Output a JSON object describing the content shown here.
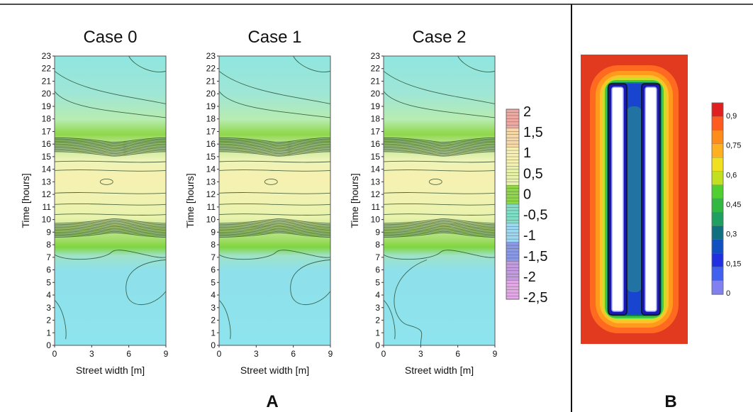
{
  "figure": {
    "panel_a_label": "A",
    "panel_b_label": "B"
  },
  "chart_data": [
    {
      "type": "heatmap",
      "title": "Case 0",
      "xlabel": "Street width [m]",
      "ylabel": "Time [hours]",
      "xlim": [
        0,
        9
      ],
      "ylim": [
        0,
        23
      ],
      "x_ticks": [
        "0",
        "3",
        "6",
        "9"
      ],
      "y_ticks": [
        "0",
        "1",
        "2",
        "3",
        "4",
        "5",
        "6",
        "7",
        "8",
        "9",
        "10",
        "11",
        "12",
        "13",
        "14",
        "15",
        "16",
        "17",
        "18",
        "19",
        "20",
        "21",
        "22",
        "23"
      ],
      "value_range": [
        -2.5,
        2
      ],
      "peak_hour": 13,
      "transition_hours": [
        8.7,
        16.3
      ]
    },
    {
      "type": "heatmap",
      "title": "Case 1",
      "xlabel": "Street width [m]",
      "ylabel": "Time [hours]",
      "xlim": [
        0,
        9
      ],
      "ylim": [
        0,
        23
      ],
      "x_ticks": [
        "0",
        "3",
        "6",
        "9"
      ],
      "y_ticks": [
        "0",
        "1",
        "2",
        "3",
        "4",
        "5",
        "6",
        "7",
        "8",
        "9",
        "10",
        "11",
        "12",
        "13",
        "14",
        "15",
        "16",
        "17",
        "18",
        "19",
        "20",
        "21",
        "22",
        "23"
      ],
      "value_range": [
        -2.5,
        2
      ],
      "peak_hour": 13,
      "transition_hours": [
        8.7,
        16.3
      ]
    },
    {
      "type": "heatmap",
      "title": "Case 2",
      "xlabel": "Street width [m]",
      "ylabel": "Time [hours]",
      "xlim": [
        0,
        9
      ],
      "ylim": [
        0,
        23
      ],
      "x_ticks": [
        "0",
        "3",
        "6",
        "9"
      ],
      "y_ticks": [
        "0",
        "1",
        "2",
        "3",
        "4",
        "5",
        "6",
        "7",
        "8",
        "9",
        "10",
        "11",
        "12",
        "13",
        "14",
        "15",
        "16",
        "17",
        "18",
        "19",
        "20",
        "21",
        "22",
        "23"
      ],
      "value_range": [
        -2.5,
        2
      ],
      "peak_hour": 13,
      "transition_hours": [
        8.7,
        16.3
      ]
    },
    {
      "type": "heatmap",
      "legend": "colorbar",
      "colorbar_ticks": [
        "2",
        "1,5",
        "1",
        "0,5",
        "0",
        "-0,5",
        "-1",
        "-1,5",
        "-2",
        "-2,5"
      ],
      "colorbar_values": [
        2,
        1.5,
        1,
        0.5,
        0,
        -0.5,
        -1,
        -1.5,
        -2,
        -2.5
      ],
      "colors": [
        "#f0a8a0",
        "#f7d9a8",
        "#f6f1b0",
        "#e9f3a8",
        "#8fd64a",
        "#7fe0c8",
        "#9cd8f2",
        "#8a98e8",
        "#c49be0",
        "#e2a9e6"
      ]
    },
    {
      "type": "heatmap",
      "legend": "colorbar",
      "colorbar_ticks": [
        "0,9",
        "0,75",
        "0,6",
        "0,45",
        "0,3",
        "0,15",
        "0"
      ],
      "colorbar_values": [
        0.9,
        0.75,
        0.6,
        0.45,
        0.3,
        0.15,
        0
      ],
      "colors": [
        "#e02020",
        "#ff5a1f",
        "#ff8c1a",
        "#ffb020",
        "#f0e020",
        "#c0e020",
        "#50d030",
        "#30b840",
        "#20a060",
        "#107080",
        "#1050c0",
        "#2030e0",
        "#4060f0",
        "#8080f0"
      ]
    }
  ]
}
